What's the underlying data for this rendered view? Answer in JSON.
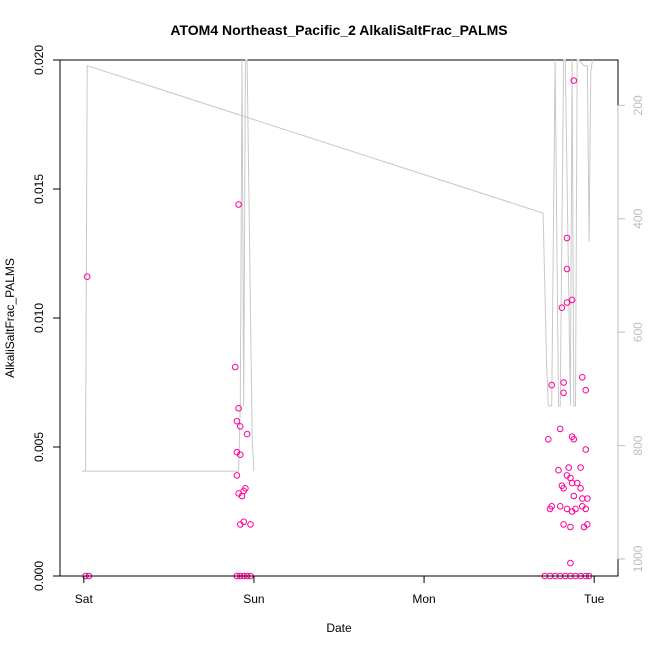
{
  "chart_data": {
    "type": "scatter",
    "title": "ATOM4 Northeast_Pacific_2 AlkaliSaltFrac_PALMS",
    "xlabel": "Date",
    "ylabel": "AlkaliSaltFrac_PALMS",
    "x_tick_labels": [
      "Sat",
      "Sun",
      "Mon",
      "Tue"
    ],
    "x_ticks_days": [
      0,
      1,
      2,
      3
    ],
    "xlim_days": [
      -0.14,
      3.14
    ],
    "ylim": [
      0,
      0.02
    ],
    "y_ticks": [
      0.0,
      0.005,
      0.01,
      0.015,
      0.02
    ],
    "y_tick_labels": [
      "0.000",
      "0.005",
      "0.010",
      "0.015",
      "0.020"
    ],
    "y2_ticks": [
      200,
      400,
      600,
      800,
      1000
    ],
    "y2_tick_labels": [
      "200",
      "400",
      "600",
      "800",
      "1000"
    ],
    "y2lim": [
      1030,
      120
    ],
    "grid": false,
    "colors": {
      "points": "#ff0099",
      "altitude_line": "#c8c8c8",
      "right_axis": "#bdbdbd"
    },
    "series": [
      {
        "points": [
          [
            0.02,
            0.0116
          ],
          [
            0.01,
            0.0
          ],
          [
            0.03,
            0.0
          ],
          [
            0.91,
            0.0144
          ],
          [
            0.89,
            0.0081
          ],
          [
            0.91,
            0.0065
          ],
          [
            0.9,
            0.006
          ],
          [
            0.92,
            0.0058
          ],
          [
            0.96,
            0.0055
          ],
          [
            0.9,
            0.0048
          ],
          [
            0.92,
            0.0047
          ],
          [
            0.9,
            0.0039
          ],
          [
            0.95,
            0.0034
          ],
          [
            0.94,
            0.0033
          ],
          [
            0.91,
            0.0032
          ],
          [
            0.93,
            0.0031
          ],
          [
            0.94,
            0.0021
          ],
          [
            0.92,
            0.002
          ],
          [
            0.98,
            0.002
          ],
          [
            0.9,
            0.0
          ],
          [
            0.92,
            0.0
          ],
          [
            0.94,
            0.0
          ],
          [
            0.96,
            0.0
          ],
          [
            0.98,
            0.0
          ],
          [
            2.75,
            0.0074
          ],
          [
            2.73,
            0.0053
          ],
          [
            2.74,
            0.0026
          ],
          [
            2.75,
            0.0027
          ],
          [
            2.81,
            0.0104
          ],
          [
            2.82,
            0.0071
          ],
          [
            2.82,
            0.0075
          ],
          [
            2.84,
            0.0131
          ],
          [
            2.84,
            0.0119
          ],
          [
            2.84,
            0.0106
          ],
          [
            2.87,
            0.0107
          ],
          [
            2.88,
            0.0192
          ],
          [
            2.93,
            0.0077
          ],
          [
            2.95,
            0.0072
          ],
          [
            2.8,
            0.0057
          ],
          [
            2.85,
            0.0042
          ],
          [
            2.87,
            0.0054
          ],
          [
            2.88,
            0.0053
          ],
          [
            2.79,
            0.0041
          ],
          [
            2.84,
            0.0039
          ],
          [
            2.86,
            0.0038
          ],
          [
            2.81,
            0.0035
          ],
          [
            2.82,
            0.0034
          ],
          [
            2.87,
            0.0036
          ],
          [
            2.9,
            0.0036
          ],
          [
            2.92,
            0.0034
          ],
          [
            2.88,
            0.0031
          ],
          [
            2.93,
            0.003
          ],
          [
            2.96,
            0.003
          ],
          [
            2.8,
            0.0027
          ],
          [
            2.84,
            0.0026
          ],
          [
            2.87,
            0.0025
          ],
          [
            2.89,
            0.0026
          ],
          [
            2.95,
            0.0026
          ],
          [
            2.93,
            0.0027
          ],
          [
            2.82,
            0.002
          ],
          [
            2.86,
            0.0019
          ],
          [
            2.94,
            0.0019
          ],
          [
            2.96,
            0.002
          ],
          [
            2.95,
            0.0049
          ],
          [
            2.92,
            0.0042
          ],
          [
            2.86,
            0.0005
          ],
          [
            2.71,
            0.0
          ],
          [
            2.74,
            0.0
          ],
          [
            2.77,
            0.0
          ],
          [
            2.8,
            0.0
          ],
          [
            2.83,
            0.0
          ],
          [
            2.86,
            0.0
          ],
          [
            2.89,
            0.0
          ],
          [
            2.92,
            0.0
          ],
          [
            2.95,
            0.0
          ],
          [
            2.97,
            0.0
          ]
        ]
      },
      {
        "type": "line",
        "y_axis": "right",
        "points": [
          [
            0.01,
            845
          ],
          [
            0.02,
            130
          ],
          [
            2.7,
            390
          ],
          [
            2.72,
            650
          ],
          [
            2.73,
            730
          ],
          [
            2.75,
            730
          ],
          [
            2.77,
            120
          ],
          [
            2.79,
            730
          ],
          [
            2.8,
            730
          ],
          [
            2.82,
            120
          ],
          [
            2.83,
            120
          ],
          [
            2.86,
            730
          ],
          [
            2.87,
            120
          ],
          [
            2.88,
            730
          ],
          [
            2.89,
            730
          ],
          [
            2.9,
            120
          ],
          [
            2.91,
            120
          ],
          [
            2.94,
            130
          ],
          [
            2.96,
            130
          ],
          [
            2.97,
            440
          ],
          [
            2.98,
            140
          ],
          [
            2.99,
            120
          ]
        ],
        "segments": [
          [
            [
              -0.01,
              845
            ],
            [
              0.91,
              845
            ],
            [
              0.92,
              730
            ],
            [
              0.93,
              120
            ],
            [
              0.94,
              730
            ],
            [
              0.95,
              120
            ],
            [
              0.96,
              120
            ],
            [
              0.99,
              790
            ],
            [
              1.0,
              845
            ]
          ]
        ]
      }
    ]
  }
}
